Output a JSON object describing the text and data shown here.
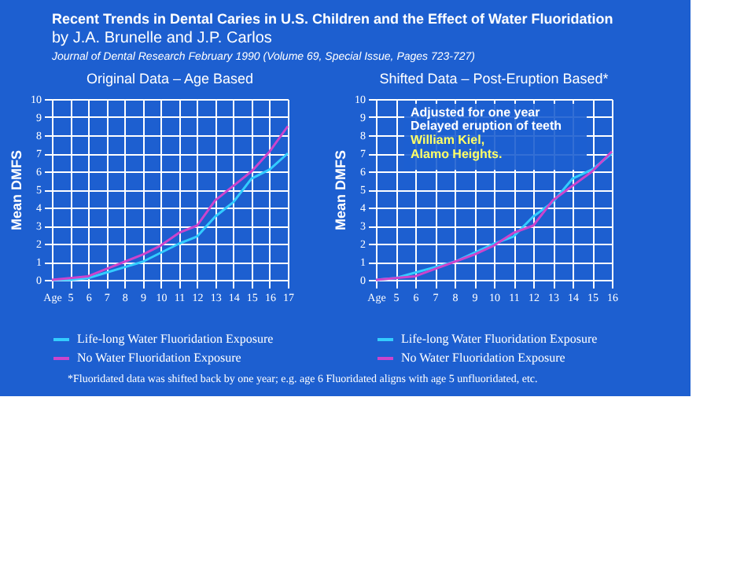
{
  "chart_data": [
    {
      "type": "other",
      "title": "Recent Trends in Dental Caries in U.S. Children and the Effect of Water Fluoridation",
      "subtitle": "by J.A. Brunelle and J.P. Carlos",
      "annotations": [
        "Journal of Dental Research February 1990 (Volume 69, Special Issue, Pages 723-727)"
      ]
    },
    {
      "type": "line",
      "title": "Original Data – Age Based",
      "ylabel": "Mean DMFS",
      "x": [
        4,
        5,
        6,
        7,
        8,
        9,
        10,
        11,
        12,
        13,
        14,
        15,
        16,
        17
      ],
      "series": [
        {
          "name": "Life-long Water Fluoridation Exposure",
          "color": "#33ccff",
          "values": [
            0,
            0,
            0.1,
            0.4,
            0.7,
            1.0,
            1.5,
            2.0,
            2.4,
            3.5,
            4.3,
            5.6,
            6.1,
            7.0
          ]
        },
        {
          "name": "No Water Fluoridation Exposure",
          "color": "#cc44cc",
          "values": [
            0,
            0.1,
            0.2,
            0.6,
            1.0,
            1.4,
            1.9,
            2.6,
            3.0,
            4.4,
            5.2,
            6.0,
            7.1,
            8.5
          ]
        }
      ],
      "xlim": [
        4,
        17
      ],
      "xticks": [
        {
          "value": 4,
          "label": "Age"
        },
        5,
        6,
        7,
        8,
        9,
        10,
        11,
        12,
        13,
        14,
        15,
        16,
        17
      ],
      "ylim": [
        0,
        10
      ],
      "yticks": [
        0,
        1,
        2,
        3,
        4,
        5,
        6,
        7,
        8,
        9,
        10
      ],
      "grid": true,
      "legend": "bottom",
      "marker": "none",
      "line_style": "solid"
    },
    {
      "type": "line",
      "title": "Shifted Data – Post-Eruption Based*",
      "ylabel": "Mean DMFS",
      "x": [
        4,
        5,
        6,
        7,
        8,
        9,
        10,
        11,
        12,
        13,
        14,
        15,
        16
      ],
      "series": [
        {
          "name": "Life-long Water Fluoridation Exposure",
          "color": "#33ccff",
          "values": [
            0,
            0.1,
            0.4,
            0.7,
            1.0,
            1.5,
            2.0,
            2.4,
            3.5,
            4.3,
            5.6,
            6.1,
            7.0
          ]
        },
        {
          "name": "No Water Fluoridation Exposure",
          "color": "#cc44cc",
          "values": [
            0,
            0.1,
            0.2,
            0.6,
            1.0,
            1.4,
            1.9,
            2.6,
            3.0,
            4.4,
            5.2,
            6.0,
            7.1
          ]
        }
      ],
      "xlim": [
        4,
        16
      ],
      "xticks": [
        {
          "value": 4,
          "label": "Age"
        },
        5,
        6,
        7,
        8,
        9,
        10,
        11,
        12,
        13,
        14,
        15,
        16
      ],
      "ylim": [
        0,
        10
      ],
      "yticks": [
        0,
        1,
        2,
        3,
        4,
        5,
        6,
        7,
        8,
        9,
        10
      ],
      "grid": true,
      "legend": "bottom",
      "marker": "none",
      "line_style": "solid",
      "annotations": [
        "Adjusted for one year",
        "Delayed eruption of teeth",
        "William Kiel,",
        "Alamo Heights.",
        "*Fluoridated data was shifted back by one year;  e.g. age 6 Fluoridated aligns with age 5  unfluoridated, etc."
      ]
    }
  ]
}
